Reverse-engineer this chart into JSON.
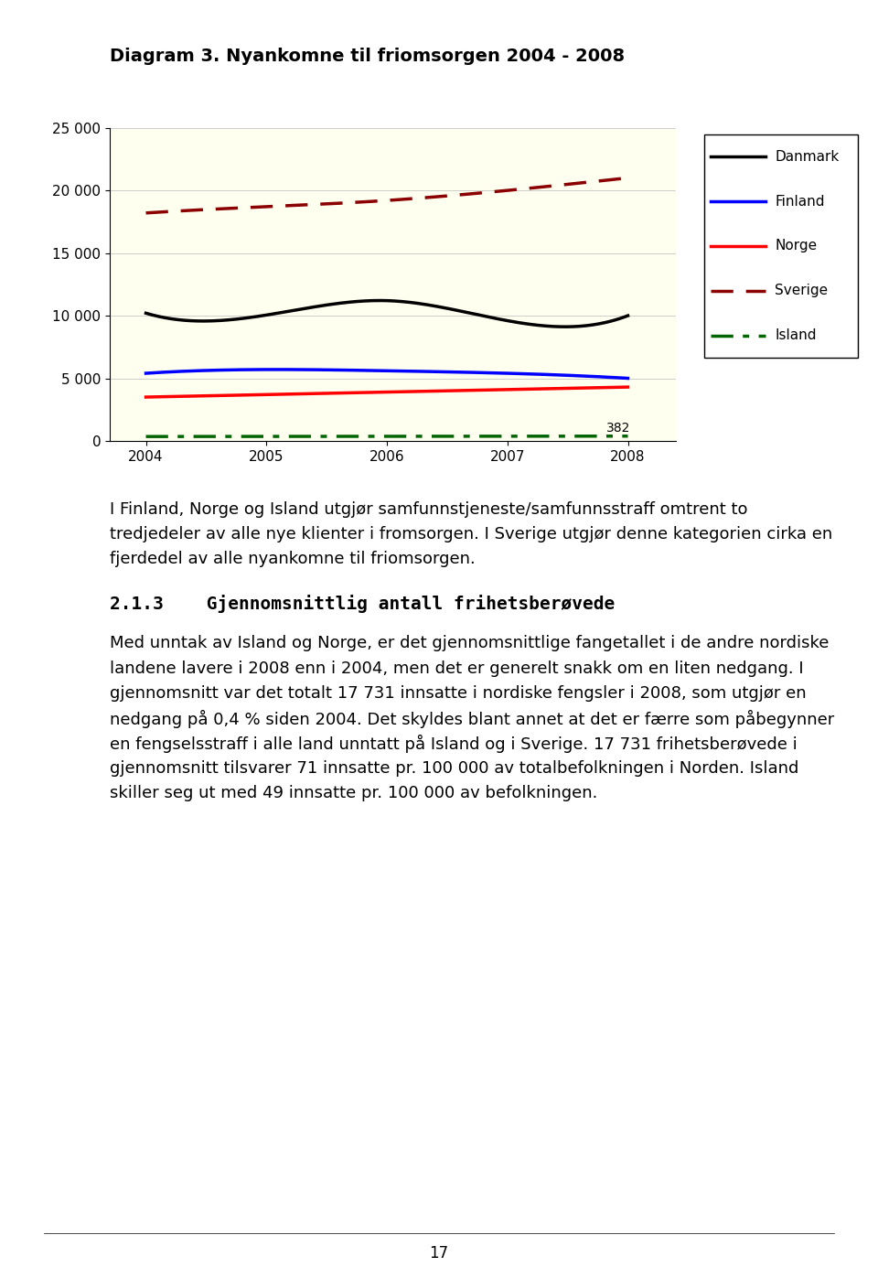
{
  "title": "Diagram 3. Nyankomne til friomsorgen 2004 - 2008",
  "years": [
    2004,
    2005,
    2006,
    2007,
    2008
  ],
  "danmark": [
    10200,
    10050,
    11200,
    9600,
    10000
  ],
  "finland": [
    5400,
    5700,
    5600,
    5400,
    5000
  ],
  "norge": [
    3500,
    3700,
    3900,
    4100,
    4300
  ],
  "sverige": [
    18200,
    18700,
    19200,
    20000,
    21000
  ],
  "island": [
    350,
    360,
    365,
    370,
    382
  ],
  "island_label": "382",
  "ylim": [
    0,
    25000
  ],
  "yticks": [
    0,
    5000,
    10000,
    15000,
    20000,
    25000
  ],
  "ytick_labels": [
    "0",
    "5 000",
    "10 000",
    "15 000",
    "20 000",
    "25 000"
  ],
  "plot_bg": "#FFFFF0",
  "fig_bg": "#FFFFFF",
  "title_fontsize": 14,
  "tick_fontsize": 11,
  "legend_fontsize": 11,
  "text_fontsize": 13,
  "heading_fontsize": 14,
  "paragraph1_line1": "I Finland, Norge og Island utgjør samfunnstjeneste/samfunnsstraff omtrent to",
  "paragraph1_line2": "tredjedeler av alle nye klienter i fromsorgen. I Sverige utgjør denne kategorien cirka en",
  "paragraph1_line3": "fjerdedel av alle nyankomne til friomsorgen.",
  "heading": "2.1.3    Gjennomsnittlig antall frihetsberøvede",
  "paragraph2_line1": "Med unntak av Island og Norge, er det gjennomsnittlige fangetallet i de andre nordiske",
  "paragraph2_line2": "landene lavere i 2008 enn i 2004, men det er generelt snakk om en liten nedgang. I",
  "paragraph2_line3": "gjennomsnitt var det totalt 17 731 innsatte i nordiske fengsler i 2008, som utgjør en",
  "paragraph2_line4": "nedgang på 0,4 % siden 2004. Det skyldes blant annet at det er færre som påbegynner",
  "paragraph2_line5": "en fengselsstraff i alle land unntatt på Island og i Sverige. 17 731 frihetsberøvede i",
  "paragraph2_line6": "gjennomsnitt tilsvarer 71 innsatte pr. 100 000 av totalbefolkningen i Norden. Island",
  "paragraph2_line7": "skiller seg ut med 49 innsatte pr. 100 000 av befolkningen.",
  "page_number": "17"
}
